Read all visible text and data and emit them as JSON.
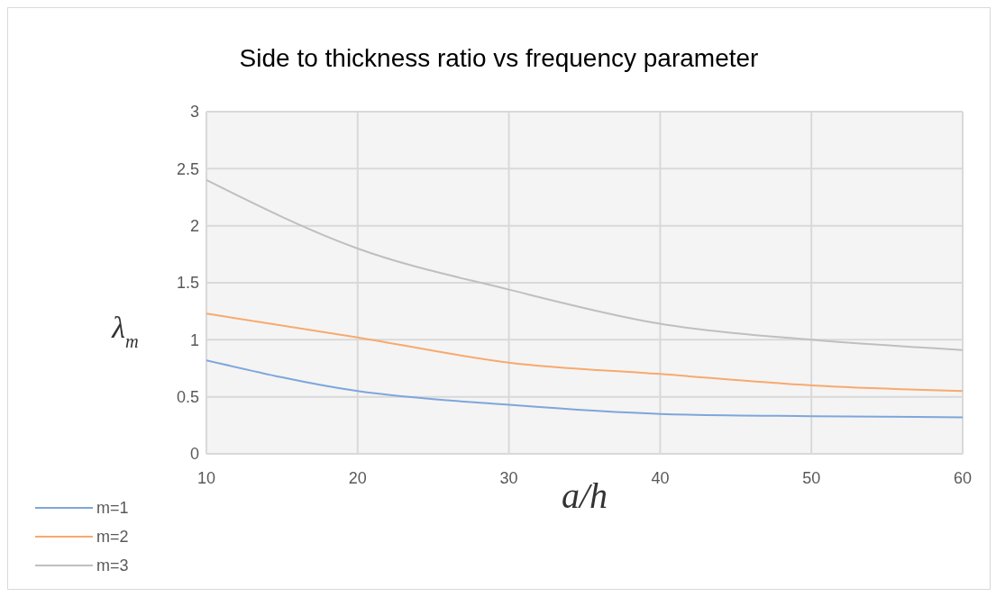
{
  "chart_data": {
    "type": "line",
    "title": "Side to thickness ratio vs frequency parameter",
    "xlabel": "a/h",
    "ylabel": "λ$_{m}$",
    "x": [
      10,
      20,
      30,
      40,
      50,
      60
    ],
    "series": [
      {
        "name": "m=1",
        "color": "#7ea6dc",
        "values": [
          0.82,
          0.55,
          0.43,
          0.35,
          0.33,
          0.32
        ]
      },
      {
        "name": "m=2",
        "color": "#f8a96e",
        "values": [
          1.23,
          1.02,
          0.8,
          0.7,
          0.6,
          0.55
        ]
      },
      {
        "name": "m=3",
        "color": "#bfbfbf",
        "values": [
          2.4,
          1.8,
          1.44,
          1.14,
          1.0,
          0.91
        ]
      }
    ],
    "xlim": [
      10,
      60
    ],
    "xticks": [
      10,
      20,
      30,
      40,
      50,
      60
    ],
    "ylim": [
      0,
      3
    ],
    "yticks": [
      0,
      0.5,
      1,
      1.5,
      2,
      2.5,
      3
    ],
    "grid": true,
    "legend": "bottom left",
    "marker": "none",
    "line_style": "solid"
  }
}
